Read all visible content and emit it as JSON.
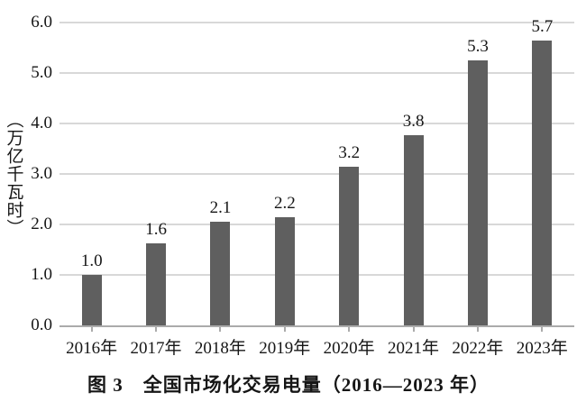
{
  "chart_data": {
    "type": "bar",
    "title": "图 3　全国市场化交易电量（2016—2023 年）",
    "ylabel": "（万亿千瓦时）",
    "xlabel": "",
    "categories": [
      "2016年",
      "2017年",
      "2018年",
      "2019年",
      "2020年",
      "2021年",
      "2022年",
      "2023年"
    ],
    "values": [
      1.0,
      1.6,
      2.1,
      2.2,
      3.2,
      3.8,
      5.3,
      5.7
    ],
    "value_labels": [
      "1.0",
      "1.6",
      "2.1",
      "2.2",
      "3.2",
      "3.8",
      "5.3",
      "5.7"
    ],
    "bar_rendered_heights": [
      1.0,
      1.63,
      2.05,
      2.15,
      3.15,
      3.77,
      5.25,
      5.65
    ],
    "ytick_labels": [
      "0.0",
      "1.0",
      "2.0",
      "3.0",
      "4.0",
      "5.0",
      "6.0"
    ],
    "yticks": [
      0,
      1,
      2,
      3,
      4,
      5,
      6
    ],
    "ylim": [
      0,
      6
    ],
    "grid": "horizontal",
    "legend": null
  },
  "colors": {
    "bar": "#5f5f5f",
    "gridline": "#d8d8d8",
    "axis": "#ababab",
    "text": "#161616",
    "background": "#ffffff"
  }
}
